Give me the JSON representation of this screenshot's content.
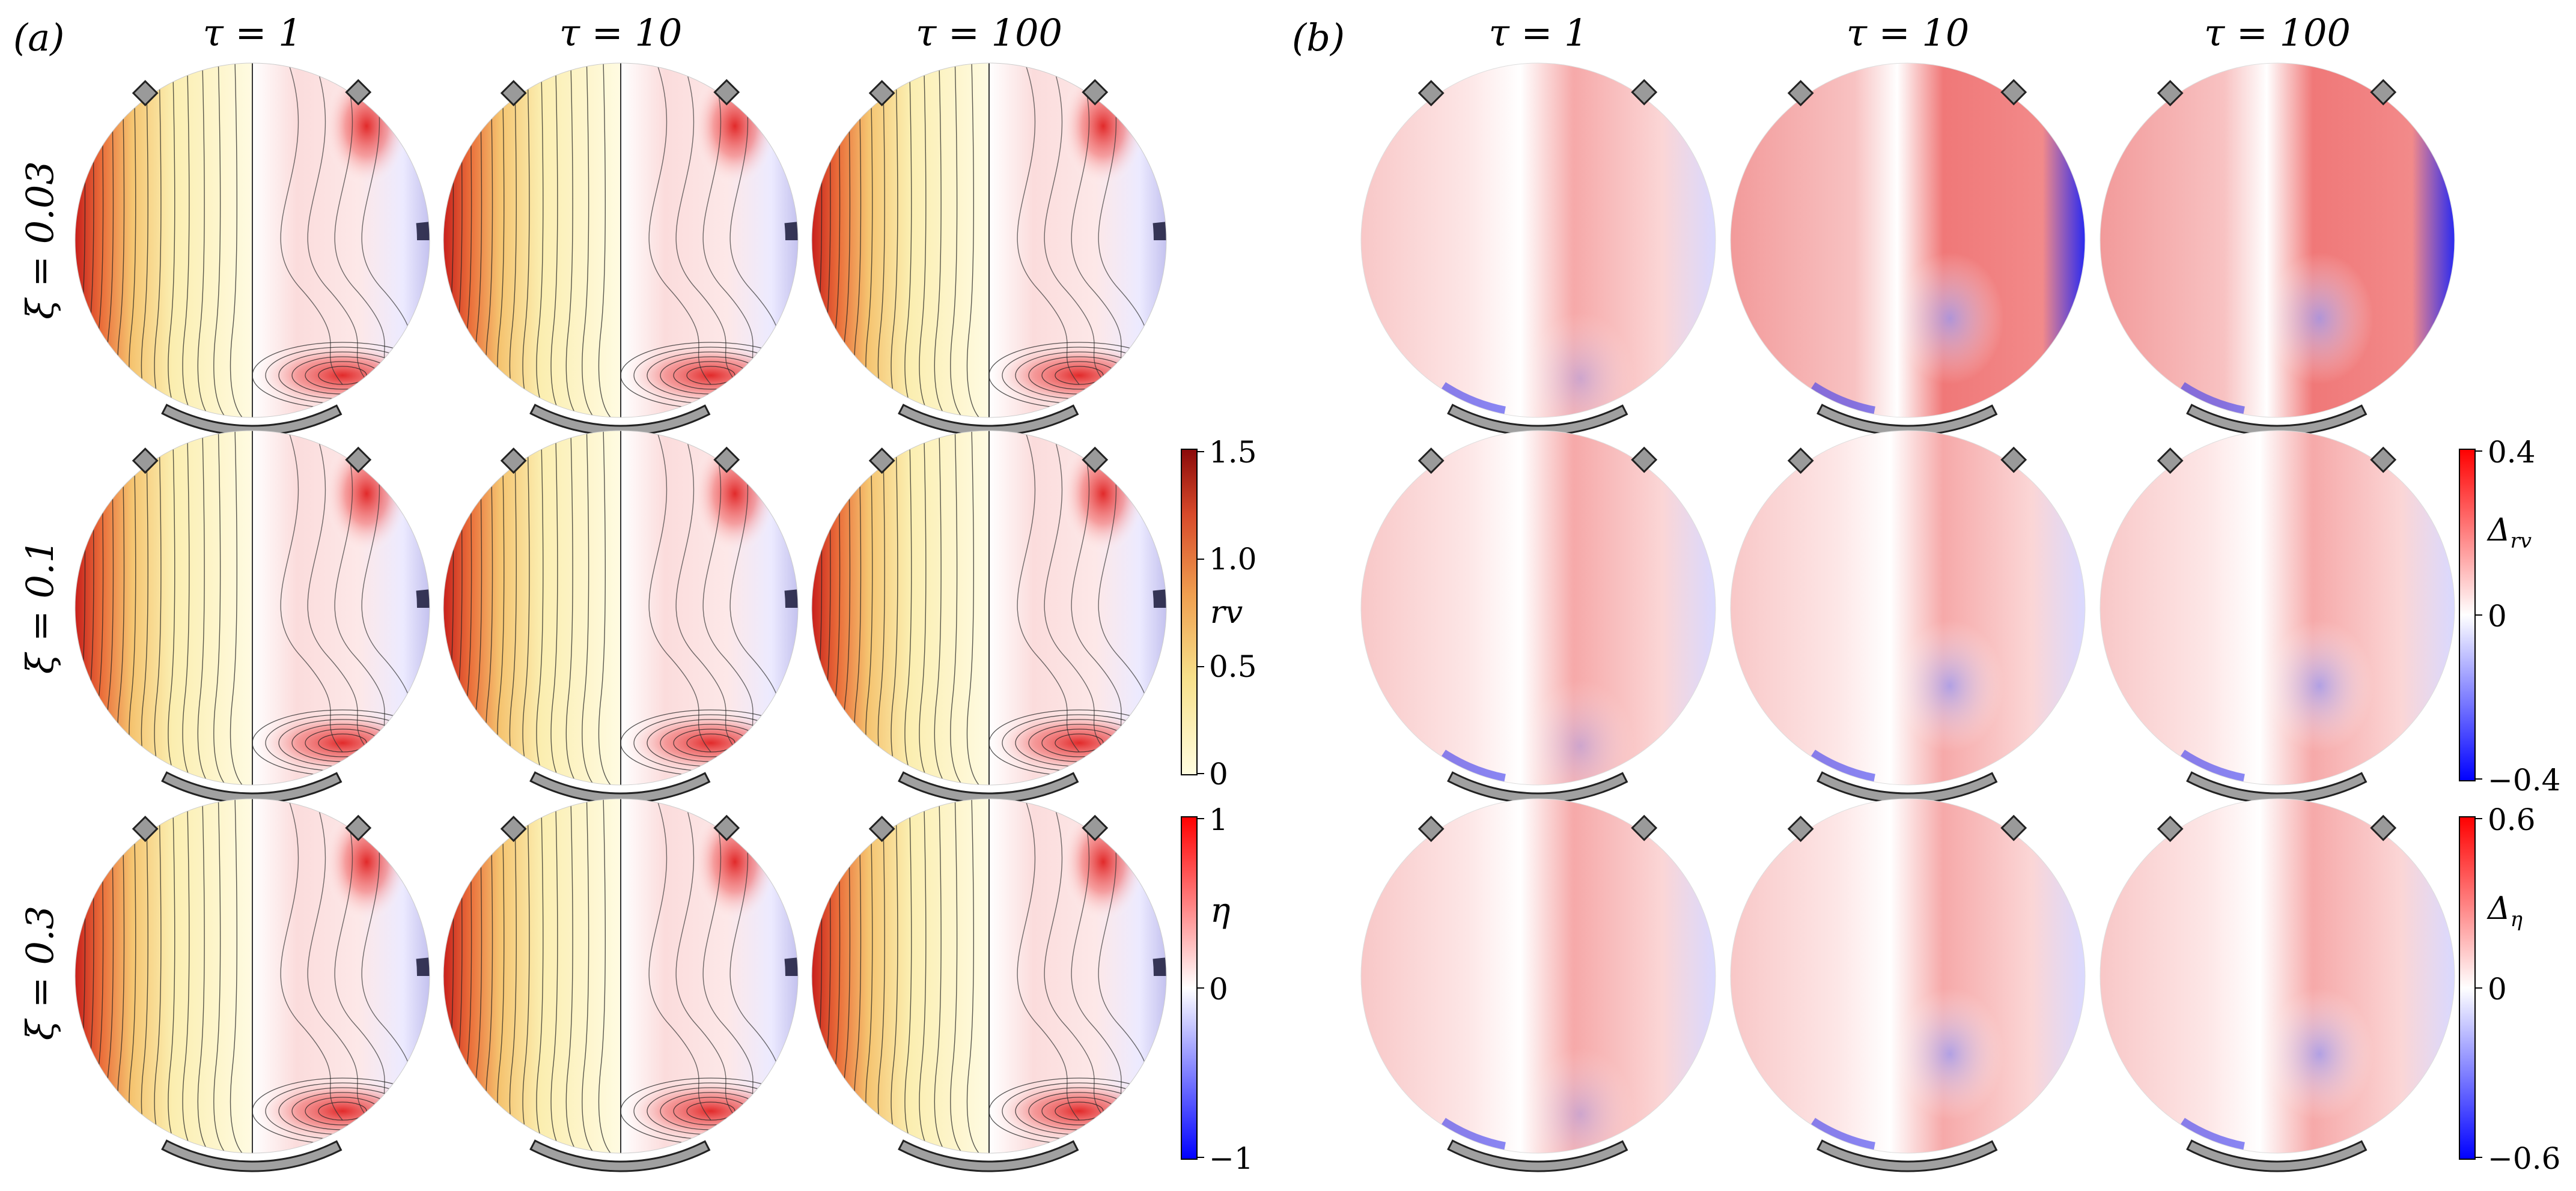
{
  "panel_a": {
    "label": "(a)",
    "columns": [
      "τ = 1",
      "τ = 10",
      "τ = 100"
    ],
    "rows": [
      "ξ = 0.03",
      "ξ = 0.1",
      "ξ = 0.3"
    ],
    "colorbar_rv": {
      "symbol": "rv",
      "ticks": [
        "1.5",
        "1.0",
        "0.5",
        "0"
      ],
      "colors": [
        "#fffde0",
        "#f7e08a",
        "#f0a050",
        "#d84a2a",
        "#8b0a0a"
      ]
    },
    "colorbar_eta": {
      "symbol": "η",
      "ticks": [
        "1",
        "0",
        "−1"
      ],
      "colors": [
        "#ff0000",
        "#ffffff",
        "#0000ff"
      ]
    }
  },
  "panel_b": {
    "label": "(b)",
    "columns": [
      "τ = 1",
      "τ = 10",
      "τ = 100"
    ],
    "colorbar_delta_rv": {
      "symbol": "Δ",
      "subscript": "rv",
      "ticks": [
        "0.4",
        "0",
        "−0.4"
      ]
    },
    "colorbar_delta_eta": {
      "symbol": "Δ",
      "subscript": "η",
      "ticks": [
        "0.6",
        "0",
        "−0.6"
      ]
    }
  }
}
